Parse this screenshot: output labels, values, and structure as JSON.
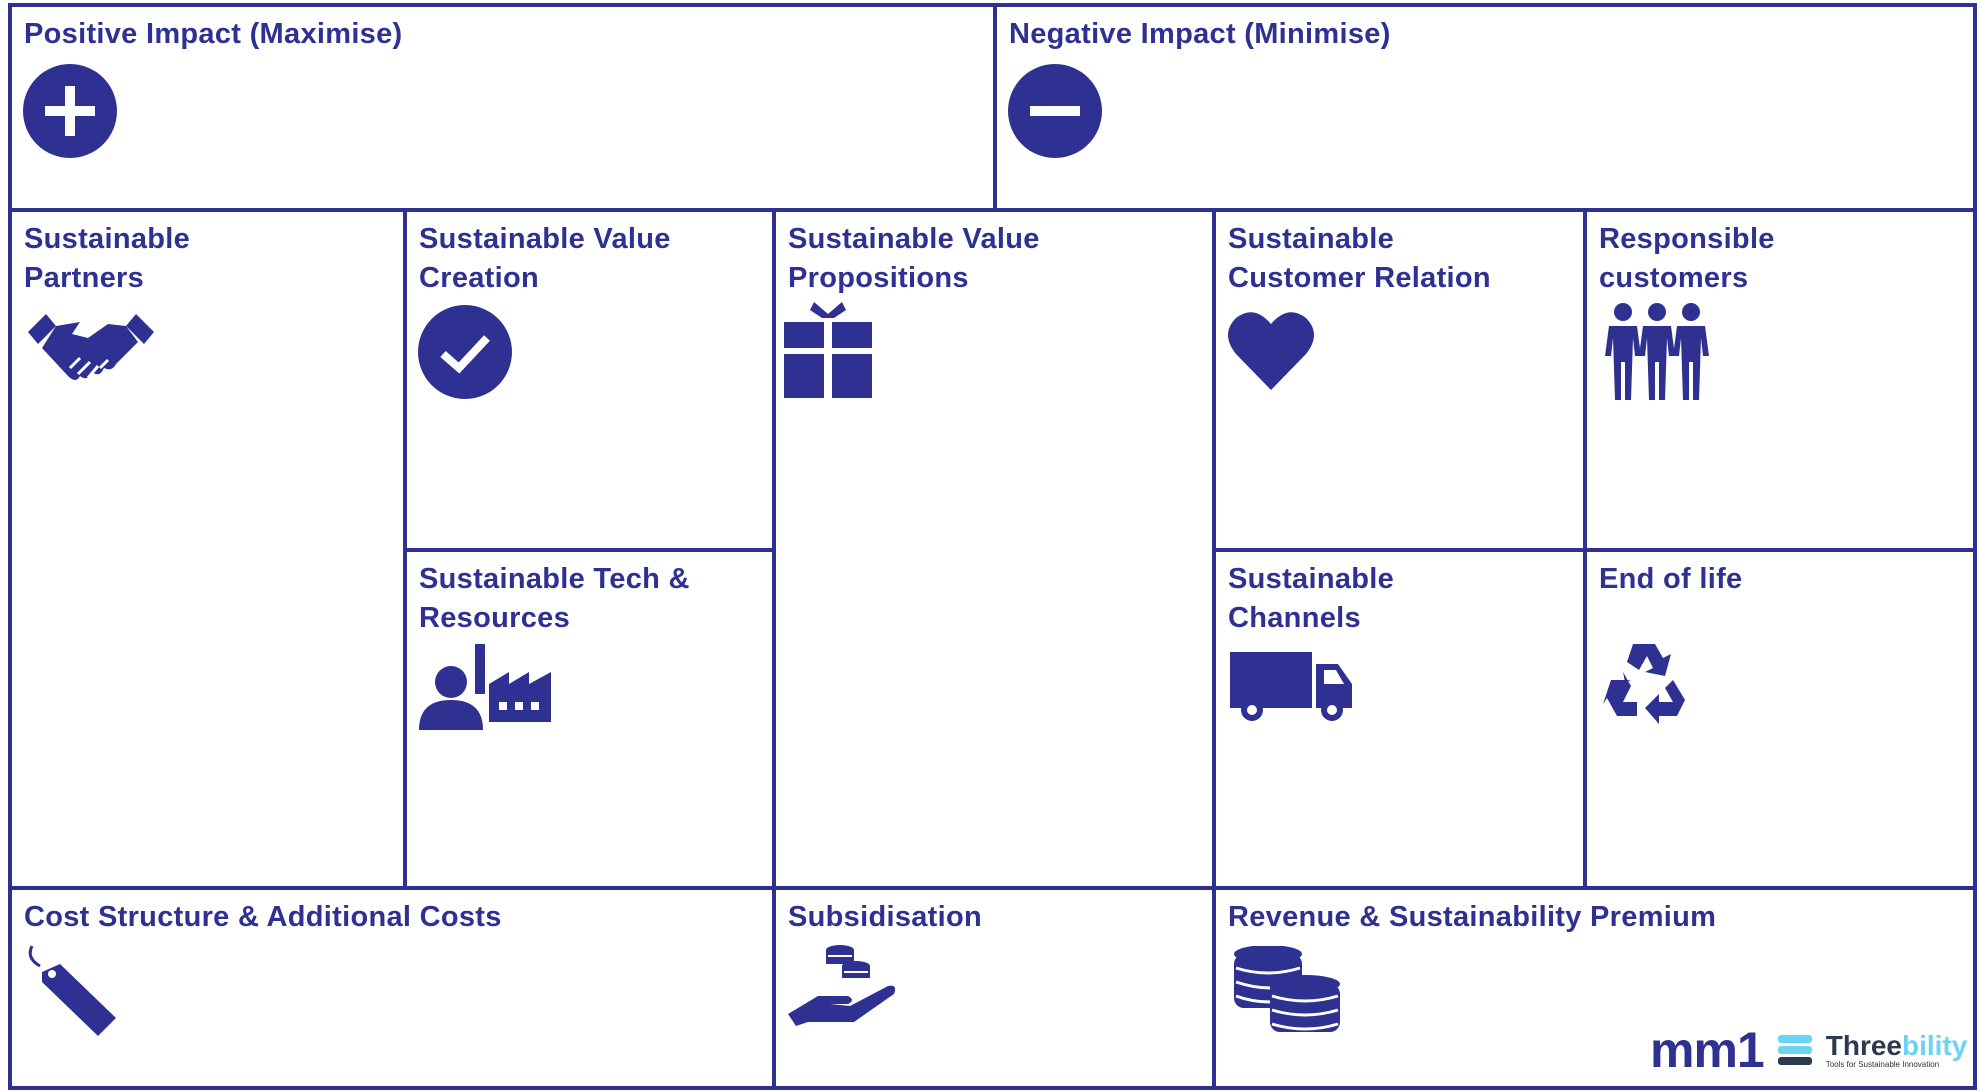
{
  "colors": {
    "primary": "#2e3192",
    "logo_light": "#6dd3f3",
    "logo_dark": "#2d3a4e"
  },
  "cells": {
    "positive": {
      "title": "Positive Impact (Maximise)",
      "icon": "plus-circle-icon"
    },
    "negative": {
      "title": "Negative Impact (Minimise)",
      "icon": "minus-circle-icon"
    },
    "partners": {
      "title_l1": "Sustainable",
      "title_l2": "Partners",
      "icon": "handshake-icon"
    },
    "value_creation": {
      "title_l1": "Sustainable Value",
      "title_l2": "Creation",
      "icon": "check-circle-icon"
    },
    "tech": {
      "title_l1": "Sustainable Tech &",
      "title_l2": "Resources",
      "icon": "person-factory-icon"
    },
    "value_props": {
      "title_l1": "Sustainable Value",
      "title_l2": "Propositions",
      "icon": "gift-icon"
    },
    "customer_relation": {
      "title_l1": "Sustainable",
      "title_l2": "Customer Relation",
      "icon": "heart-icon"
    },
    "responsible": {
      "title_l1": "Responsible",
      "title_l2": "customers",
      "icon": "people-icon"
    },
    "channels": {
      "title_l1": "Sustainable",
      "title_l2": "Channels",
      "icon": "truck-icon"
    },
    "end_of_life": {
      "title": "End of life",
      "icon": "recycle-icon"
    },
    "cost": {
      "title": "Cost Structure & Additional Costs",
      "icon": "price-tag-icon"
    },
    "subsidisation": {
      "title": "Subsidisation",
      "icon": "hand-coins-icon"
    },
    "revenue": {
      "title": "Revenue & Sustainability Premium",
      "icon": "coins-icon"
    }
  },
  "logos": {
    "mm1": "mm1",
    "threebility_a": "Three",
    "threebility_b": "bility",
    "tagline": "Tools for Sustainable Innovation"
  }
}
